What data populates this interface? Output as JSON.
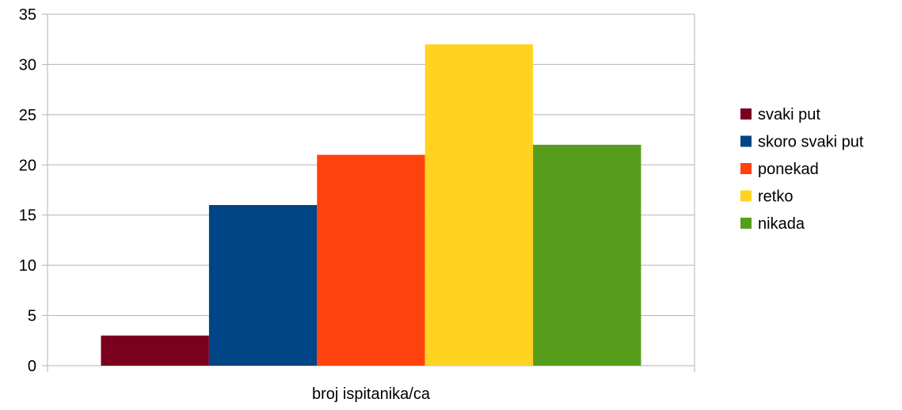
{
  "chart_data": {
    "type": "bar",
    "title": "",
    "xlabel": "",
    "ylabel": "",
    "categories": [
      "broj ispitanika/ca"
    ],
    "series": [
      {
        "name": "svaki put",
        "values": [
          3
        ],
        "color": "#7b0020"
      },
      {
        "name": "skoro svaki put",
        "values": [
          16
        ],
        "color": "#004586"
      },
      {
        "name": "ponekad",
        "values": [
          21
        ],
        "color": "#ff420e"
      },
      {
        "name": "retko",
        "values": [
          32
        ],
        "color": "#ffd320"
      },
      {
        "name": "nikada",
        "values": [
          22
        ],
        "color": "#579d1c"
      }
    ],
    "ylim": [
      0,
      35
    ],
    "yticks": [
      0,
      5,
      10,
      15,
      20,
      25,
      30,
      35
    ],
    "grid": true,
    "legend": "right"
  }
}
